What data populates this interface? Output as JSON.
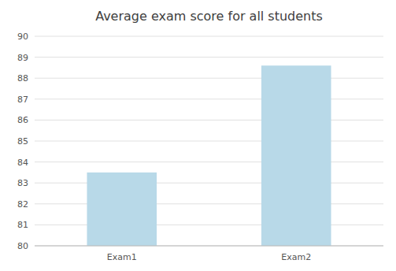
{
  "chart_data": {
    "type": "bar",
    "title": "Average exam score for all students",
    "categories": [
      "Exam1",
      "Exam2"
    ],
    "values": [
      83.5,
      88.6
    ],
    "color": "#b8d9e8",
    "ylim": [
      80,
      90
    ],
    "yticks": [
      80,
      81,
      82,
      83,
      84,
      85,
      86,
      87,
      88,
      89,
      90
    ],
    "grid": true
  }
}
